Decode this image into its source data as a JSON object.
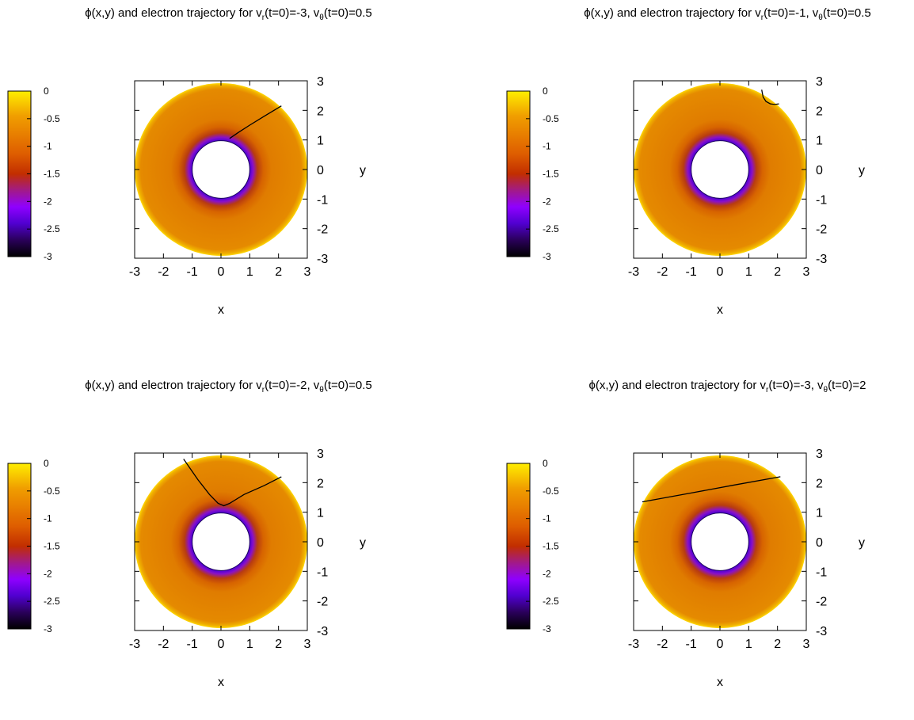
{
  "panels": [
    {
      "title": {
        "prefix": "ϕ(x,y) and electron trajectory for v",
        "sub1": "r",
        "mid": "(t=0)=-3, v",
        "sub2": "θ",
        "suffix": "(t=0)=0.5"
      },
      "trajectory": [
        [
          2.1,
          2.15
        ],
        [
          1.5,
          1.8
        ],
        [
          1.0,
          1.5
        ],
        [
          0.6,
          1.25
        ],
        [
          0.3,
          1.05
        ]
      ]
    },
    {
      "title": {
        "prefix": "ϕ(x,y) and electron trajectory for v",
        "sub1": "r",
        "mid": "(t=0)=-1, v",
        "sub2": "θ",
        "suffix": "(t=0)=0.5"
      },
      "trajectory": [
        [
          1.45,
          2.7
        ],
        [
          1.5,
          2.45
        ],
        [
          1.6,
          2.3
        ],
        [
          1.75,
          2.22
        ],
        [
          1.9,
          2.2
        ],
        [
          2.05,
          2.22
        ]
      ]
    },
    {
      "title": {
        "prefix": "ϕ(x,y) and electron trajectory for v",
        "sub1": "r",
        "mid": "(t=0)=-2, v",
        "sub2": "θ",
        "suffix": "(t=0)=0.5"
      },
      "trajectory": [
        [
          -1.3,
          2.8
        ],
        [
          -0.8,
          2.1
        ],
        [
          -0.4,
          1.6
        ],
        [
          -0.1,
          1.3
        ],
        [
          0.1,
          1.22
        ],
        [
          0.3,
          1.3
        ],
        [
          0.8,
          1.6
        ],
        [
          1.5,
          1.9
        ],
        [
          2.1,
          2.2
        ]
      ]
    },
    {
      "title": {
        "prefix": "ϕ(x,y) and electron trajectory for v",
        "sub1": "r",
        "mid": "(t=0)=-3, v",
        "sub2": "θ",
        "suffix": "(t=0)=2"
      },
      "trajectory": [
        [
          -2.7,
          1.35
        ],
        [
          -1.0,
          1.65
        ],
        [
          0.5,
          1.92
        ],
        [
          2.1,
          2.2
        ]
      ]
    }
  ],
  "axes": {
    "xlabel": "x",
    "ylabel": "y",
    "xticks": [
      "-3",
      "-2",
      "-1",
      "0",
      "1",
      "2",
      "3"
    ],
    "yticks": [
      "3",
      "2",
      "1",
      "0",
      "-1",
      "-2",
      "-3"
    ]
  },
  "colorbar": {
    "ticks": [
      "0",
      "-0.5",
      "-1",
      "-1.5",
      "-2",
      "-2.5",
      "-3"
    ]
  },
  "chart_data": [
    {
      "type": "heatmap",
      "title": "ϕ(x,y) and electron trajectory for vr(t=0)=-3, vθ(t=0)=0.5",
      "xlabel": "x",
      "ylabel": "y",
      "xlim": [
        -3,
        3
      ],
      "ylim": [
        -3,
        3
      ],
      "colorbar_range": [
        -3,
        0
      ],
      "field": {
        "inner_radius": 1,
        "outer_radius": 3,
        "phi_at_inner": -2.2,
        "phi_at_outer": 0
      },
      "series": [
        {
          "x": [
            2.1,
            1.5,
            1.0,
            0.6,
            0.3
          ],
          "y": [
            2.15,
            1.8,
            1.5,
            1.25,
            1.05
          ]
        }
      ]
    },
    {
      "type": "heatmap",
      "title": "ϕ(x,y) and electron trajectory for vr(t=0)=-1, vθ(t=0)=0.5",
      "xlabel": "x",
      "ylabel": "y",
      "xlim": [
        -3,
        3
      ],
      "ylim": [
        -3,
        3
      ],
      "colorbar_range": [
        -3,
        0
      ],
      "field": {
        "inner_radius": 1,
        "outer_radius": 3,
        "phi_at_inner": -2.2,
        "phi_at_outer": 0
      },
      "series": [
        {
          "x": [
            1.45,
            1.5,
            1.6,
            1.75,
            1.9,
            2.05
          ],
          "y": [
            2.7,
            2.45,
            2.3,
            2.22,
            2.2,
            2.22
          ]
        }
      ]
    },
    {
      "type": "heatmap",
      "title": "ϕ(x,y) and electron trajectory for vr(t=0)=-2, vθ(t=0)=0.5",
      "xlabel": "x",
      "ylabel": "y",
      "xlim": [
        -3,
        3
      ],
      "ylim": [
        -3,
        3
      ],
      "colorbar_range": [
        -3,
        0
      ],
      "field": {
        "inner_radius": 1,
        "outer_radius": 3,
        "phi_at_inner": -2.2,
        "phi_at_outer": 0
      },
      "series": [
        {
          "x": [
            -1.3,
            -0.8,
            -0.4,
            -0.1,
            0.1,
            0.3,
            0.8,
            1.5,
            2.1
          ],
          "y": [
            2.8,
            2.1,
            1.6,
            1.3,
            1.22,
            1.3,
            1.6,
            1.9,
            2.2
          ]
        }
      ]
    },
    {
      "type": "heatmap",
      "title": "ϕ(x,y) and electron trajectory for vr(t=0)=-3, vθ(t=0)=2",
      "xlabel": "x",
      "ylabel": "y",
      "xlim": [
        -3,
        3
      ],
      "ylim": [
        -3,
        3
      ],
      "colorbar_range": [
        -3,
        0
      ],
      "field": {
        "inner_radius": 1,
        "outer_radius": 3,
        "phi_at_inner": -2.2,
        "phi_at_outer": 0
      },
      "series": [
        {
          "x": [
            -2.7,
            -1.0,
            0.5,
            2.1
          ],
          "y": [
            1.35,
            1.65,
            1.92,
            2.2
          ]
        }
      ]
    }
  ]
}
